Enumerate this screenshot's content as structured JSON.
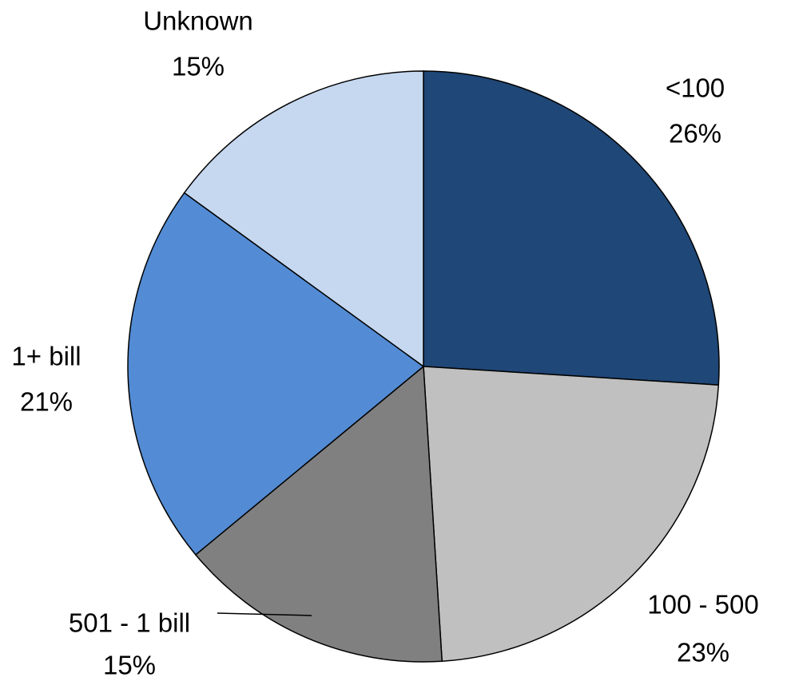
{
  "chart_data": {
    "type": "pie",
    "categories": [
      "<100",
      "100 - 500",
      "501 - 1 bill",
      "1+ bill",
      "Unknown"
    ],
    "values": [
      26,
      23,
      15,
      21,
      15
    ],
    "value_labels": [
      "26%",
      "23%",
      "15%",
      "21%",
      "15%"
    ],
    "colors": [
      "#1f4777",
      "#c0c0c0",
      "#808080",
      "#538cd5",
      "#c6d8f0"
    ]
  }
}
